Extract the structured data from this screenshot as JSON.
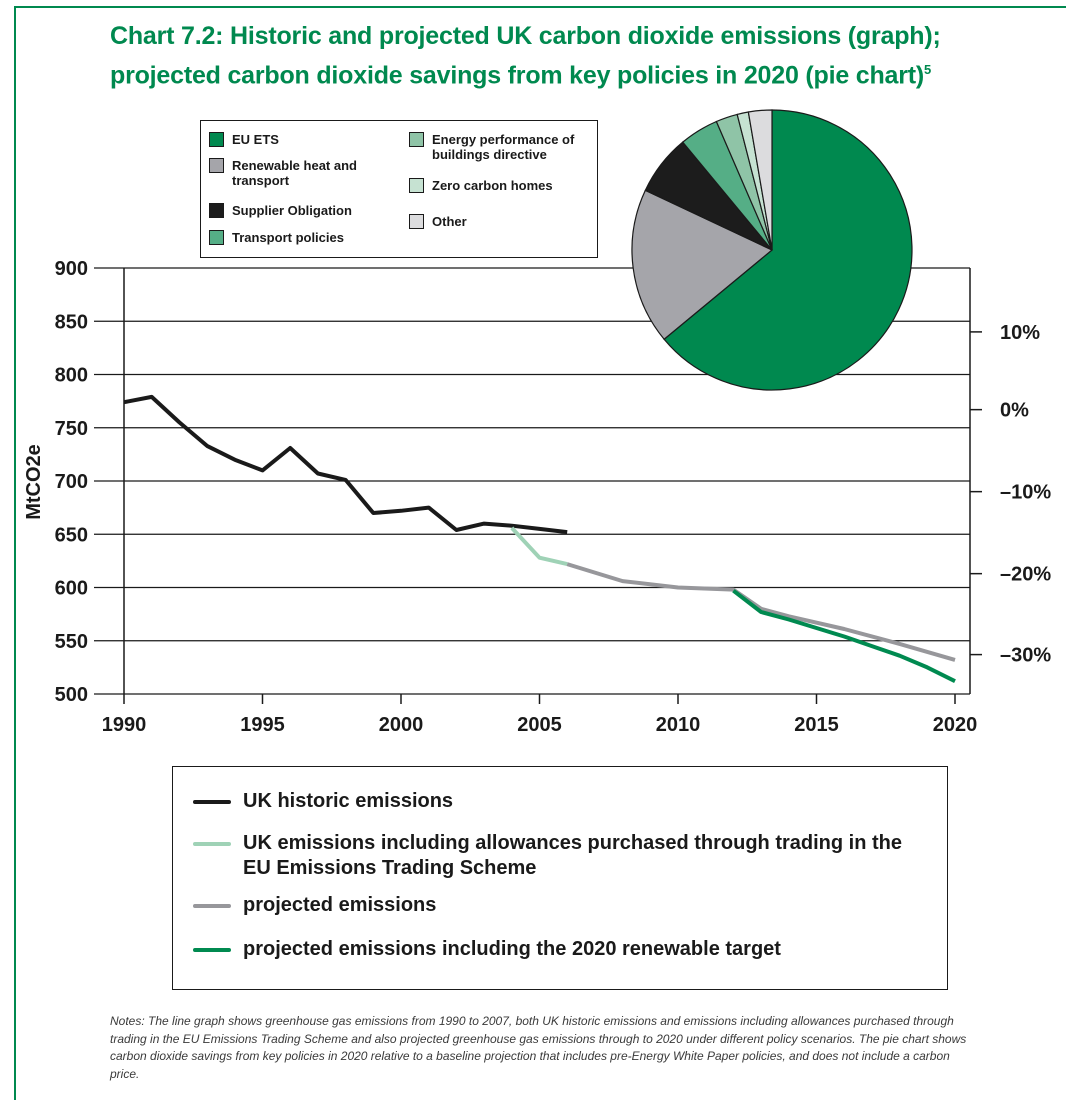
{
  "title": {
    "line1": "Chart 7.2: Historic and projected UK carbon dioxide emissions (graph);",
    "line2": "projected carbon dioxide savings from key policies in 2020 (pie chart)",
    "footnote_mark": "5"
  },
  "notes": "Notes: The line graph shows greenhouse gas emissions from 1990 to 2007, both UK historic emissions and emissions including allowances purchased through trading in the EU Emissions Trading Scheme and also projected greenhouse gas emissions through to 2020 under different policy scenarios. The pie chart shows carbon dioxide savings from key policies in 2020 relative to a baseline projection that includes pre-Energy White Paper policies, and does not include a carbon price.",
  "chart_data": [
    {
      "type": "line",
      "ylabel": "MtCO2e",
      "xlim": [
        1990,
        2020
      ],
      "ylim": [
        500,
        900
      ],
      "x_ticks": [
        1990,
        1995,
        2000,
        2005,
        2010,
        2015,
        2020
      ],
      "y_ticks": [
        500,
        550,
        600,
        650,
        700,
        750,
        800,
        850,
        900
      ],
      "y2_ticks": [
        {
          "label": "10%",
          "value": 840
        },
        {
          "label": "0%",
          "value": 767
        },
        {
          "label": "–10%",
          "value": 690
        },
        {
          "label": "–20%",
          "value": 613
        },
        {
          "label": "–30%",
          "value": 537
        }
      ],
      "grid": "horizontal",
      "legend_position": "bottom",
      "series": [
        {
          "name": "UK historic emissions",
          "color": "#1a1a1a",
          "x": [
            1990,
            1991,
            1992,
            1993,
            1994,
            1995,
            1996,
            1997,
            1998,
            1999,
            2000,
            2001,
            2002,
            2003,
            2004,
            2005,
            2006
          ],
          "y": [
            774,
            779,
            755,
            733,
            720,
            710,
            731,
            707,
            701,
            670,
            672,
            675,
            654,
            660,
            658,
            655,
            652
          ]
        },
        {
          "name": "UK emissions including allowances purchased through trading in the EU Emissions Trading Scheme",
          "color": "#9fd2b6",
          "x": [
            2004,
            2005,
            2006
          ],
          "y": [
            656,
            628,
            622
          ]
        },
        {
          "name": "projected emissions",
          "color": "#97979b",
          "x": [
            2006,
            2008,
            2010,
            2012,
            2013,
            2014,
            2016,
            2018,
            2020
          ],
          "y": [
            622,
            606,
            600,
            598,
            580,
            573,
            561,
            547,
            532
          ]
        },
        {
          "name": "projected emissions including the 2020 renewable target",
          "color": "#008a50",
          "x": [
            2012,
            2013,
            2014,
            2016,
            2017,
            2018,
            2019,
            2020
          ],
          "y": [
            597,
            577,
            570,
            554,
            545,
            536,
            525,
            512
          ]
        }
      ]
    },
    {
      "type": "pie",
      "slices": [
        {
          "label": "EU ETS",
          "value": 64,
          "color": "#00894f"
        },
        {
          "label": "Renewable heat and transport",
          "value": 18,
          "color": "#a5a5aa"
        },
        {
          "label": "Supplier Obligation",
          "value": 7,
          "color": "#1c1c1c"
        },
        {
          "label": "Transport policies",
          "value": 4.5,
          "color": "#55ae86"
        },
        {
          "label": "Energy performance of buildings directive",
          "value": 2.5,
          "color": "#8fc4a7"
        },
        {
          "label": "Zero carbon homes",
          "value": 1.3,
          "color": "#c6e2d2"
        },
        {
          "label": "Other",
          "value": 2.7,
          "color": "#dcdcde"
        }
      ]
    }
  ]
}
